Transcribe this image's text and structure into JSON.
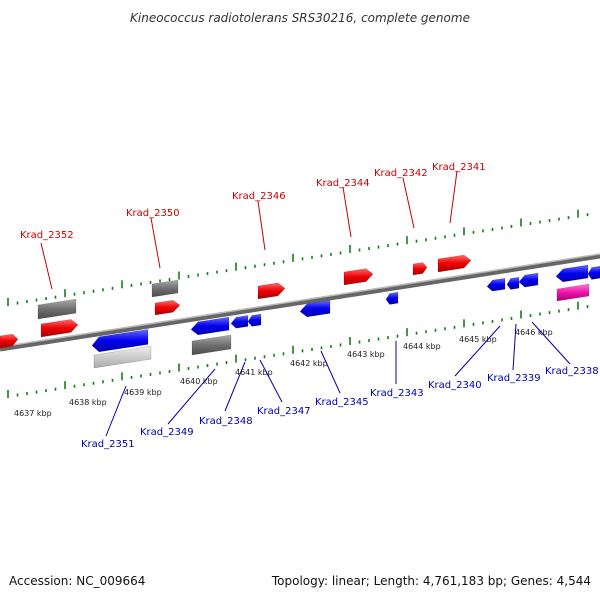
{
  "title": "Kineococcus radiotolerans SRS30216, complete genome",
  "footer": {
    "accession": "Accession: NC_009664",
    "summary": "Topology: linear; Length: 4,761,183 bp; Genes: 4,544"
  },
  "colors": {
    "top_label": "#cc0000",
    "bottom_label": "#0000aa",
    "ticks": "#1a7a1a",
    "backbone": "#888888"
  },
  "scale_labels": [
    "4637 kbp",
    "4638 kbp",
    "4639 kbp",
    "4640 kbp",
    "4641 kbp",
    "4642 kbp",
    "4643 kbp",
    "4644 kbp",
    "4645 kbp",
    "4646 kbp"
  ],
  "top_labels": [
    "Krad_2352",
    "Krad_2350",
    "Krad_2346",
    "Krad_2344",
    "Krad_2342",
    "Krad_2341"
  ],
  "bottom_labels": [
    "Krad_2351",
    "Krad_2349",
    "Krad_2348",
    "Krad_2347",
    "Krad_2345",
    "Krad_2343",
    "Krad_2340",
    "Krad_2339",
    "Krad_2338"
  ]
}
